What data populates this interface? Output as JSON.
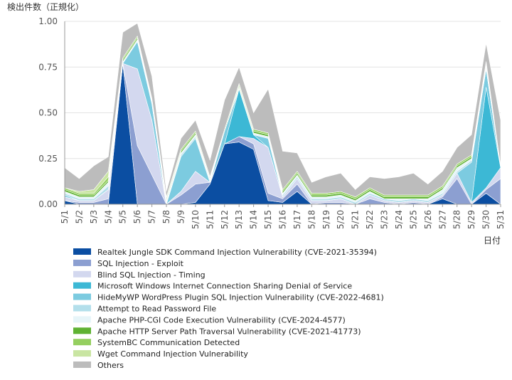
{
  "chart_data": {
    "type": "area",
    "stacked": true,
    "ylabel": "検出件数（正規化）",
    "xlabel": "日付",
    "ylim": [
      0,
      1.0
    ],
    "yticks": [
      "0.00",
      "0.25",
      "0.50",
      "0.75",
      "1.00"
    ],
    "grid": "horizontal",
    "legend_position": "bottom",
    "categories": [
      "5/1",
      "5/2",
      "5/3",
      "5/4",
      "5/5",
      "5/6",
      "5/7",
      "5/8",
      "5/9",
      "5/10",
      "5/11",
      "5/12",
      "5/13",
      "5/14",
      "5/15",
      "5/16",
      "5/17",
      "5/18",
      "5/19",
      "5/20",
      "5/21",
      "5/22",
      "5/23",
      "5/24",
      "5/25",
      "5/26",
      "5/27",
      "5/28",
      "5/29",
      "5/30",
      "5/31"
    ],
    "series": [
      {
        "name": "Realtek Jungle SDK Command Injection Vulnerability (CVE-2021-35394)",
        "color": "#0b4ea2",
        "values": [
          0.02,
          0.0,
          0.0,
          0.0,
          0.77,
          0.0,
          0.0,
          0.0,
          0.0,
          0.01,
          0.11,
          0.33,
          0.34,
          0.3,
          0.02,
          0.01,
          0.07,
          0.0,
          0.0,
          0.0,
          0.0,
          0.0,
          0.0,
          0.0,
          0.0,
          0.0,
          0.03,
          0.0,
          0.0,
          0.06,
          0.0
        ]
      },
      {
        "name": "SQL Injection - Exploit",
        "color": "#8c9fd1",
        "values": [
          0.0,
          0.01,
          0.01,
          0.03,
          0.0,
          0.32,
          0.16,
          0.0,
          0.05,
          0.1,
          0.01,
          0.0,
          0.03,
          0.03,
          0.04,
          0.02,
          0.04,
          0.0,
          0.01,
          0.01,
          0.0,
          0.03,
          0.01,
          0.0,
          0.01,
          0.0,
          0.01,
          0.14,
          0.0,
          0.02,
          0.14
        ]
      },
      {
        "name": "Blind SQL Injection - Timing",
        "color": "#d3d8ef",
        "values": [
          0.02,
          0.01,
          0.01,
          0.05,
          0.0,
          0.42,
          0.3,
          0.0,
          0.02,
          0.07,
          0.0,
          0.0,
          0.0,
          0.03,
          0.25,
          0.01,
          0.03,
          0.02,
          0.01,
          0.02,
          0.0,
          0.02,
          0.01,
          0.01,
          0.01,
          0.01,
          0.01,
          0.03,
          0.01,
          0.01,
          0.06
        ]
      },
      {
        "name": "Microsoft Windows Internet Connection Sharing Denial of Service",
        "color": "#3cb8d5",
        "values": [
          0.0,
          0.0,
          0.0,
          0.0,
          0.0,
          0.0,
          0.0,
          0.0,
          0.0,
          0.0,
          0.0,
          0.0,
          0.26,
          0.02,
          0.0,
          0.0,
          0.0,
          0.0,
          0.0,
          0.0,
          0.0,
          0.0,
          0.0,
          0.0,
          0.0,
          0.0,
          0.0,
          0.0,
          0.0,
          0.55,
          0.0
        ]
      },
      {
        "name": "HideMyWP WordPress Plugin SQL Injection Vulnerability (CVE-2022-4681)",
        "color": "#7ccbe0",
        "values": [
          0.01,
          0.0,
          0.0,
          0.0,
          0.0,
          0.15,
          0.09,
          0.0,
          0.19,
          0.18,
          0.0,
          0.07,
          0.0,
          0.0,
          0.05,
          0.0,
          0.0,
          0.0,
          0.0,
          0.0,
          0.0,
          0.0,
          0.0,
          0.0,
          0.0,
          0.0,
          0.0,
          0.0,
          0.22,
          0.1,
          0.0
        ]
      },
      {
        "name": "Attempt to Read Password File",
        "color": "#b3dfeb",
        "values": [
          0.01,
          0.01,
          0.01,
          0.02,
          0.0,
          0.0,
          0.0,
          0.01,
          0.01,
          0.01,
          0.01,
          0.0,
          0.0,
          0.0,
          0.0,
          0.01,
          0.01,
          0.01,
          0.01,
          0.01,
          0.01,
          0.01,
          0.01,
          0.01,
          0.01,
          0.01,
          0.01,
          0.01,
          0.01,
          0.0,
          0.0
        ]
      },
      {
        "name": "Apache PHP-CGI Code Execution Vulnerability (CVE-2024-4577)",
        "color": "#e7f5f9",
        "values": [
          0.01,
          0.01,
          0.01,
          0.02,
          0.01,
          0.01,
          0.01,
          0.01,
          0.01,
          0.01,
          0.01,
          0.0,
          0.01,
          0.01,
          0.01,
          0.01,
          0.01,
          0.01,
          0.01,
          0.01,
          0.01,
          0.01,
          0.0,
          0.01,
          0.0,
          0.01,
          0.02,
          0.02,
          0.01,
          0.02,
          0.01
        ]
      },
      {
        "name": "Apache HTTP Server Path Traversal Vulnerability (CVE-2021-41773)",
        "color": "#5fb233",
        "values": [
          0.01,
          0.01,
          0.01,
          0.01,
          0.01,
          0.01,
          0.01,
          0.01,
          0.01,
          0.01,
          0.0,
          0.01,
          0.01,
          0.01,
          0.01,
          0.01,
          0.01,
          0.01,
          0.01,
          0.01,
          0.01,
          0.01,
          0.01,
          0.01,
          0.01,
          0.01,
          0.01,
          0.01,
          0.01,
          0.01,
          0.0
        ]
      },
      {
        "name": "SystemBC Communication Detected",
        "color": "#95cf60",
        "values": [
          0.01,
          0.01,
          0.01,
          0.02,
          0.01,
          0.01,
          0.01,
          0.01,
          0.01,
          0.01,
          0.01,
          0.0,
          0.01,
          0.01,
          0.01,
          0.01,
          0.01,
          0.01,
          0.01,
          0.01,
          0.01,
          0.01,
          0.01,
          0.01,
          0.01,
          0.01,
          0.01,
          0.01,
          0.01,
          0.01,
          0.0
        ]
      },
      {
        "name": "Wget Command Injection Vulnerability",
        "color": "#c9e5a2",
        "values": [
          0.0,
          0.01,
          0.02,
          0.03,
          0.0,
          0.0,
          0.0,
          0.0,
          0.0,
          0.0,
          0.0,
          0.0,
          0.0,
          0.0,
          0.0,
          0.0,
          0.0,
          0.0,
          0.0,
          0.0,
          0.0,
          0.0,
          0.0,
          0.0,
          0.0,
          0.0,
          0.0,
          0.0,
          0.0,
          0.0,
          0.0
        ]
      },
      {
        "name": "Others",
        "color": "#bcbcbc",
        "values": [
          0.11,
          0.07,
          0.13,
          0.08,
          0.14,
          0.07,
          0.12,
          0.03,
          0.06,
          0.06,
          0.09,
          0.16,
          0.09,
          0.09,
          0.24,
          0.21,
          0.1,
          0.06,
          0.09,
          0.1,
          0.04,
          0.06,
          0.09,
          0.1,
          0.12,
          0.06,
          0.08,
          0.09,
          0.11,
          0.1,
          0.25
        ]
      }
    ]
  }
}
